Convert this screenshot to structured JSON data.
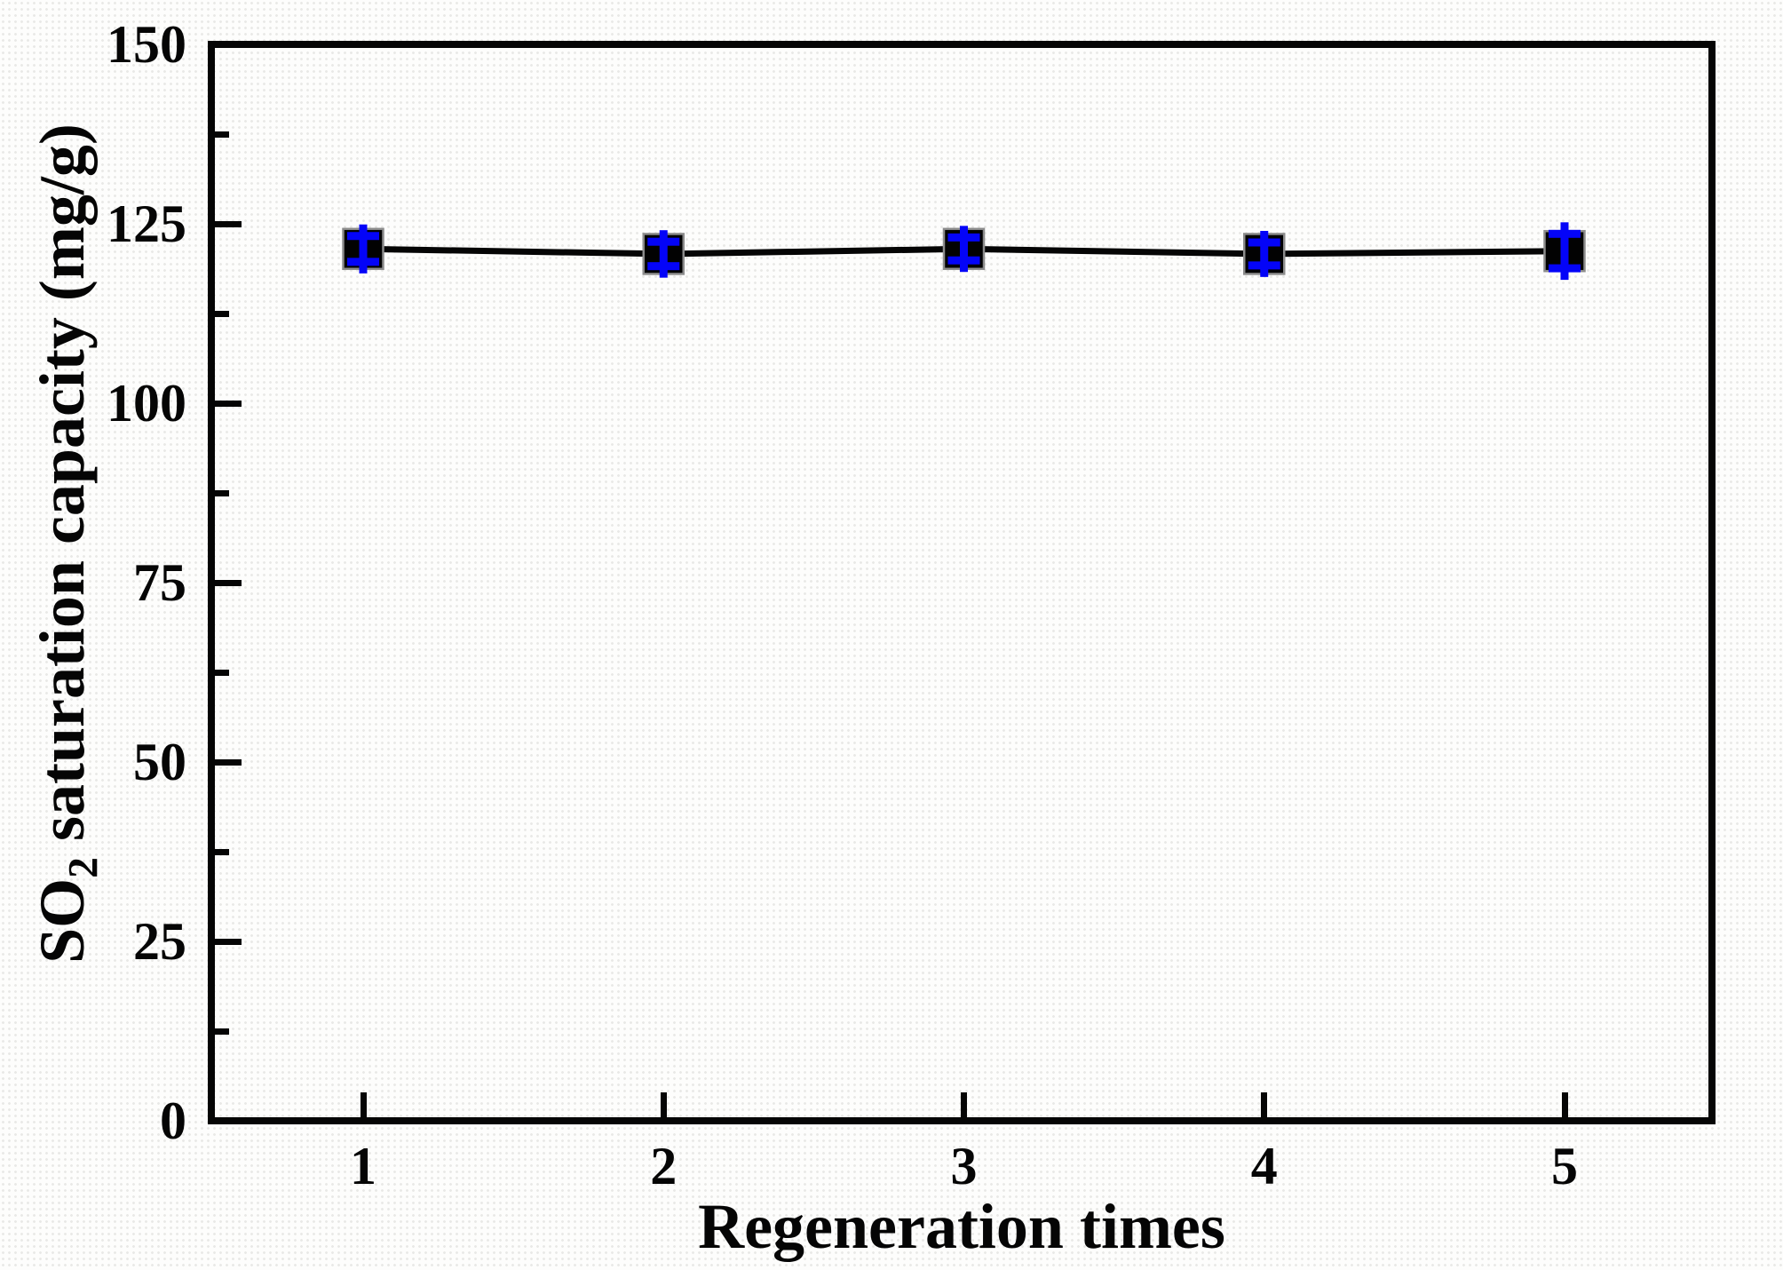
{
  "chart_data": {
    "type": "line",
    "title": "",
    "xlabel": "Regeneration times",
    "ylabel": "SO2 saturation capacity (mg/g)",
    "ylabel_parts": {
      "prefix": "SO",
      "subscript": "2",
      "suffix": " saturation capacity (mg/g)"
    },
    "x": [
      1,
      2,
      3,
      4,
      5
    ],
    "series": [
      {
        "name": "SO2 saturation capacity",
        "values": [
          121.5,
          120.8,
          121.5,
          120.8,
          121.2
        ],
        "yerr": [
          1.8,
          1.7,
          1.6,
          1.6,
          2.4
        ]
      }
    ],
    "xlim": [
      0.5,
      5.5
    ],
    "ylim": [
      0,
      150
    ],
    "x_ticks": [
      1,
      2,
      3,
      4,
      5
    ],
    "y_ticks": [
      0,
      25,
      50,
      75,
      100,
      125,
      150
    ],
    "y_minor_step": 12.5,
    "grid": false,
    "legend": null,
    "marker": "filled-square",
    "colors": {
      "line": "#050505",
      "marker_fill": "#020202",
      "marker_edge": "#8c8c8c",
      "error_bar": "#0404f8",
      "axis": "#050505",
      "text": "#050505"
    }
  }
}
